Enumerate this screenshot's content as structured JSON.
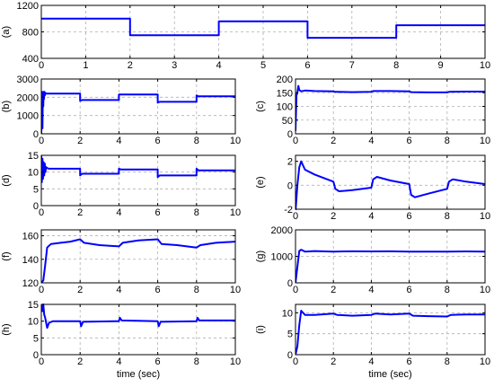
{
  "figure": {
    "xlabel": "time (sec)"
  },
  "chart_data": [
    {
      "id": "a",
      "type": "line",
      "panel_label": "(a)",
      "xlim": [
        0,
        10
      ],
      "ylim": [
        400,
        1200
      ],
      "grid": true,
      "xticks": [
        0,
        1,
        2,
        3,
        4,
        5,
        6,
        7,
        8,
        9,
        10
      ],
      "yticks": [
        400,
        800,
        1200
      ],
      "xlabel": "",
      "ylabel": "",
      "series": [
        {
          "color": "#0000ff",
          "x": [
            0,
            2,
            2,
            4,
            4,
            6,
            6,
            8,
            8,
            10
          ],
          "y": [
            1000,
            1000,
            750,
            750,
            960,
            960,
            710,
            710,
            900,
            900
          ]
        }
      ]
    },
    {
      "id": "b",
      "type": "line",
      "panel_label": "(b)",
      "xlim": [
        0,
        10
      ],
      "ylim": [
        0,
        3000
      ],
      "grid": true,
      "xticks": [
        0,
        2,
        4,
        6,
        8,
        10
      ],
      "yticks": [
        0,
        1000,
        2000,
        3000
      ],
      "xlabel": "",
      "ylabel": "",
      "series": [
        {
          "color": "#0000ff",
          "x": [
            0,
            0.04,
            0.06,
            0.08,
            0.1,
            0.12,
            0.14,
            0.16,
            0.18,
            0.2,
            0.25,
            0.3,
            2,
            2,
            2.1,
            4,
            4,
            4.1,
            6,
            6,
            6.1,
            8,
            8,
            8.1,
            10
          ],
          "y": [
            0,
            2300,
            300,
            2200,
            1500,
            2300,
            1900,
            2300,
            2100,
            2250,
            2200,
            2200,
            2200,
            1800,
            1850,
            1850,
            2150,
            2150,
            2150,
            1700,
            1750,
            1750,
            2100,
            2050,
            2050
          ]
        }
      ]
    },
    {
      "id": "c",
      "type": "line",
      "panel_label": "(c)",
      "xlim": [
        0,
        10
      ],
      "ylim": [
        0,
        200
      ],
      "grid": true,
      "xticks": [
        0,
        2,
        4,
        6,
        8,
        10
      ],
      "yticks": [
        0,
        50,
        100,
        150,
        200
      ],
      "xlabel": "",
      "ylabel": "",
      "series": [
        {
          "color": "#0000ff",
          "x": [
            0,
            0.05,
            0.1,
            0.15,
            0.2,
            0.3,
            0.5,
            1,
            2,
            2.1,
            3,
            4,
            4.1,
            5,
            6,
            6.1,
            7,
            8,
            8.1,
            9,
            10
          ],
          "y": [
            10,
            140,
            150,
            175,
            160,
            155,
            158,
            156,
            155,
            153,
            152,
            153,
            156,
            156,
            155,
            152,
            151,
            151,
            153,
            154,
            154
          ]
        }
      ]
    },
    {
      "id": "d",
      "type": "line",
      "panel_label": "(d)",
      "xlim": [
        0,
        10
      ],
      "ylim": [
        0,
        15
      ],
      "grid": true,
      "xticks": [
        0,
        2,
        4,
        6,
        8,
        10
      ],
      "yticks": [
        0,
        5,
        10,
        15
      ],
      "xlabel": "",
      "ylabel": "",
      "series": [
        {
          "color": "#0000ff",
          "x": [
            0,
            0.03,
            0.06,
            0.09,
            0.12,
            0.15,
            0.18,
            0.21,
            0.25,
            0.3,
            0.4,
            2,
            2,
            2.1,
            4,
            4,
            4.1,
            6,
            6,
            6.1,
            8,
            8,
            8.1,
            10
          ],
          "y": [
            15,
            7,
            14,
            8,
            13,
            9,
            12.5,
            10,
            11.5,
            11.2,
            11,
            11,
            9,
            9.5,
            9.5,
            11,
            10.8,
            10.8,
            8.5,
            9,
            9,
            11,
            10.5,
            10.5
          ]
        }
      ]
    },
    {
      "id": "e",
      "type": "line",
      "panel_label": "(e)",
      "xlim": [
        0,
        10
      ],
      "ylim": [
        -2,
        2.5
      ],
      "grid": true,
      "xticks": [
        0,
        2,
        4,
        6,
        8,
        10
      ],
      "yticks": [
        -2,
        0,
        2
      ],
      "xlabel": "",
      "ylabel": "",
      "series": [
        {
          "color": "#0000ff",
          "x": [
            0,
            0.1,
            0.2,
            0.3,
            0.5,
            1,
            1.5,
            2,
            2.1,
            2.3,
            3,
            4,
            4.1,
            4.3,
            5,
            6,
            6.1,
            6.3,
            7,
            8,
            8.1,
            8.3,
            9,
            10
          ],
          "y": [
            -2.2,
            0,
            1.5,
            2,
            1.3,
            0.9,
            0.6,
            0.3,
            -0.3,
            -0.5,
            -0.4,
            -0.2,
            0.5,
            0.7,
            0.4,
            0.1,
            -0.8,
            -1,
            -0.7,
            -0.3,
            0.3,
            0.5,
            0.3,
            0.1
          ]
        }
      ]
    },
    {
      "id": "f",
      "type": "line",
      "panel_label": "(f)",
      "xlim": [
        0,
        10
      ],
      "ylim": [
        120,
        165
      ],
      "grid": true,
      "xticks": [
        0,
        2,
        4,
        6,
        8,
        10
      ],
      "yticks": [
        120,
        140,
        160
      ],
      "xlabel": "",
      "ylabel": "",
      "series": [
        {
          "color": "#0000ff",
          "x": [
            0,
            0.1,
            0.2,
            0.3,
            0.5,
            1,
            1.5,
            2,
            2.2,
            3,
            4,
            4.2,
            5,
            6,
            6.2,
            7,
            8,
            8.2,
            9,
            10
          ],
          "y": [
            120,
            122,
            135,
            150,
            153,
            154,
            155,
            157,
            154,
            152,
            151,
            154,
            156,
            157,
            153,
            152,
            150,
            152,
            154,
            155
          ]
        }
      ]
    },
    {
      "id": "g",
      "type": "line",
      "panel_label": "(g)",
      "xlim": [
        0,
        10
      ],
      "ylim": [
        0,
        2000
      ],
      "grid": true,
      "xticks": [
        0,
        2,
        4,
        6,
        8,
        10
      ],
      "yticks": [
        0,
        1000,
        2000
      ],
      "xlabel": "",
      "ylabel": "",
      "series": [
        {
          "color": "#0000ff",
          "x": [
            0,
            0.1,
            0.2,
            0.3,
            0.5,
            1,
            2,
            3,
            4,
            5,
            6,
            7,
            8,
            9,
            10
          ],
          "y": [
            0,
            600,
            1200,
            1250,
            1180,
            1200,
            1180,
            1190,
            1185,
            1190,
            1180,
            1175,
            1180,
            1185,
            1180
          ]
        }
      ]
    },
    {
      "id": "h",
      "type": "line",
      "panel_label": "(h)",
      "xlim": [
        0,
        10
      ],
      "ylim": [
        0,
        15
      ],
      "grid": true,
      "xticks": [
        0,
        2,
        4,
        6,
        8,
        10
      ],
      "yticks": [
        0,
        5,
        10,
        15
      ],
      "xlabel": "time (sec)",
      "ylabel": "",
      "series": [
        {
          "color": "#0000ff",
          "x": [
            0,
            0.05,
            0.1,
            0.15,
            0.2,
            0.3,
            0.4,
            0.6,
            1,
            2,
            2.05,
            2.15,
            4,
            4.05,
            4.15,
            6,
            6.05,
            6.15,
            8,
            8.05,
            8.15,
            10
          ],
          "y": [
            15,
            13,
            15,
            12,
            11,
            8,
            9.5,
            10,
            10,
            10,
            8.5,
            9.8,
            10,
            11,
            10.2,
            10,
            8.5,
            9.8,
            10,
            11,
            10.2,
            10.2
          ]
        }
      ]
    },
    {
      "id": "i",
      "type": "line",
      "panel_label": "(i)",
      "xlim": [
        0,
        10
      ],
      "ylim": [
        0,
        12
      ],
      "grid": true,
      "xticks": [
        0,
        2,
        4,
        6,
        8,
        10
      ],
      "yticks": [
        0,
        5,
        10
      ],
      "xlabel": "time (sec)",
      "ylabel": "",
      "series": [
        {
          "color": "#0000ff",
          "x": [
            0,
            0.1,
            0.2,
            0.3,
            0.5,
            1,
            2,
            2.2,
            3,
            4,
            4.2,
            5,
            6,
            6.2,
            7,
            8,
            8.2,
            9,
            10
          ],
          "y": [
            0,
            2,
            7,
            10.5,
            9.5,
            9.5,
            9.8,
            9.5,
            9.3,
            9.5,
            9.8,
            9.6,
            9.8,
            9.3,
            9.2,
            9.1,
            9.5,
            9.6,
            9.6
          ]
        }
      ]
    }
  ]
}
